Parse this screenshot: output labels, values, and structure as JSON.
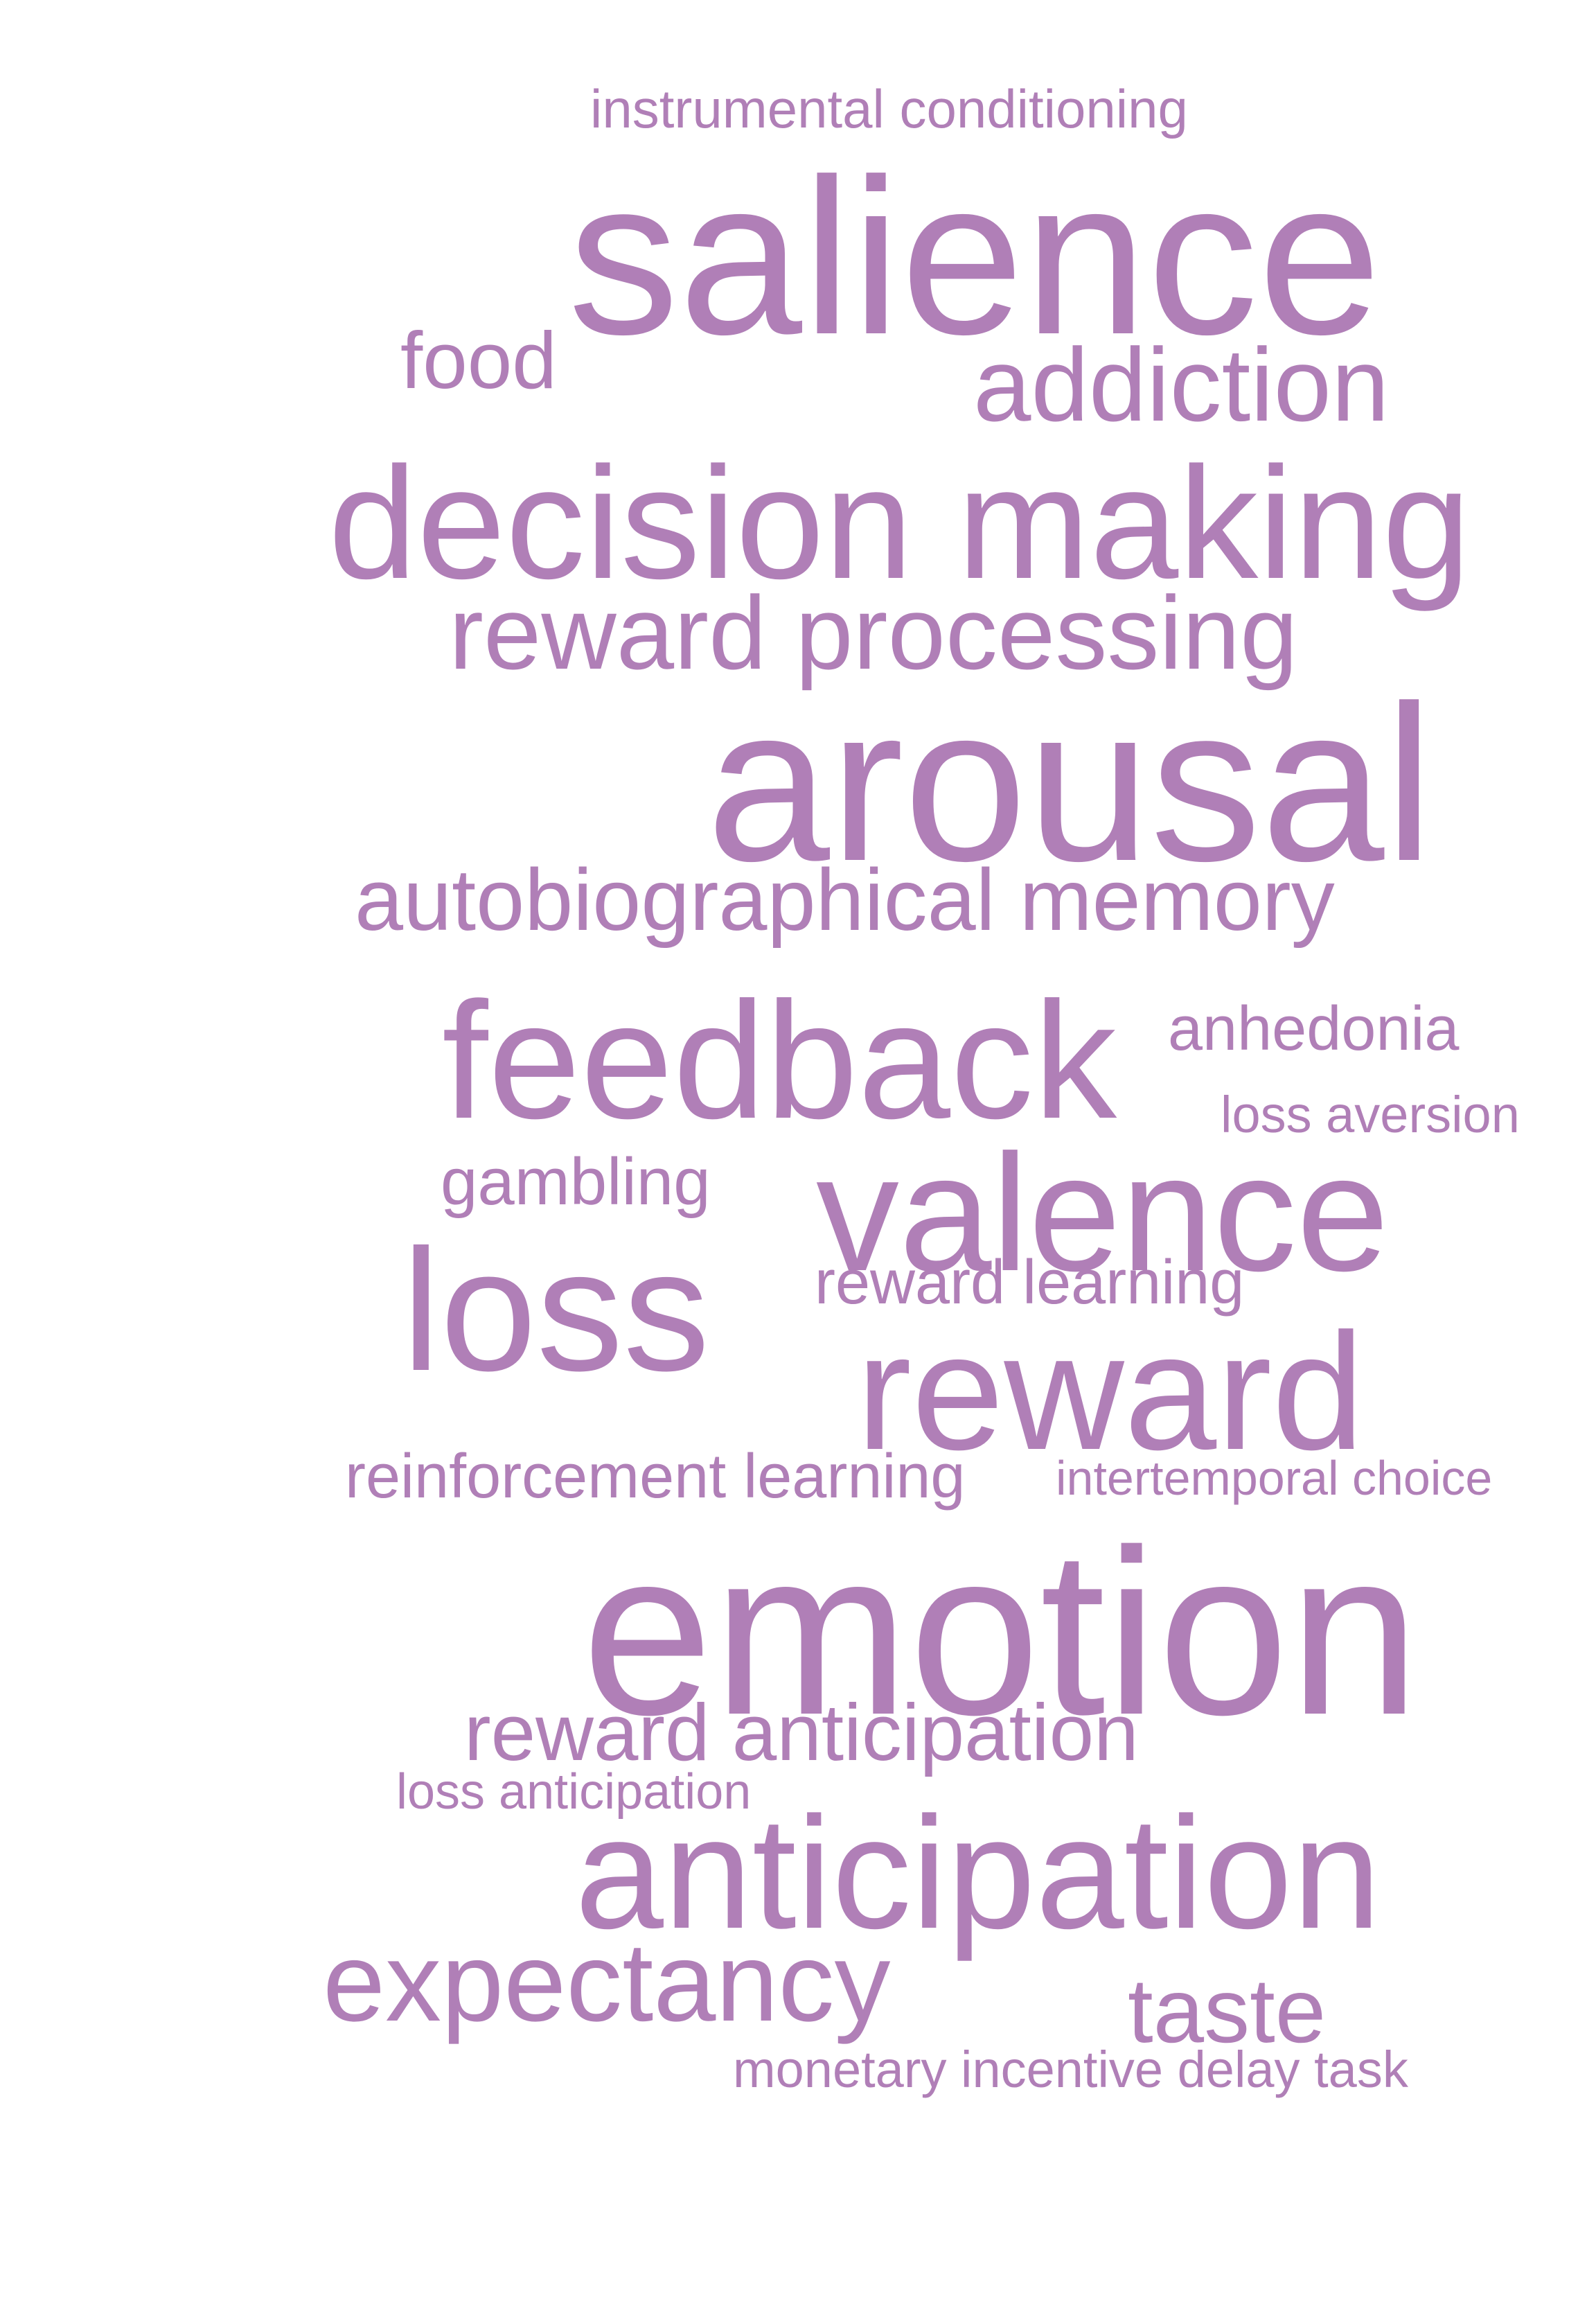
{
  "word_cloud": {
    "color": "#b07fb7",
    "background": "#ffffff",
    "words": [
      {
        "id": "instrumental-conditioning",
        "text": "instrumental conditioning"
      },
      {
        "id": "salience",
        "text": "salience"
      },
      {
        "id": "food",
        "text": "food"
      },
      {
        "id": "addiction",
        "text": "addiction"
      },
      {
        "id": "decision-making",
        "text": "decision making"
      },
      {
        "id": "reward-processing",
        "text": "reward processing"
      },
      {
        "id": "arousal",
        "text": "arousal"
      },
      {
        "id": "autobiographical-memory",
        "text": "autobiographical memory"
      },
      {
        "id": "feedback",
        "text": "feedback"
      },
      {
        "id": "anhedonia",
        "text": "anhedonia"
      },
      {
        "id": "loss-aversion",
        "text": "loss aversion"
      },
      {
        "id": "gambling",
        "text": "gambling"
      },
      {
        "id": "valence",
        "text": "valence"
      },
      {
        "id": "loss",
        "text": "loss"
      },
      {
        "id": "reward-learning",
        "text": "reward learning"
      },
      {
        "id": "reward",
        "text": "reward"
      },
      {
        "id": "reinforcement-learning",
        "text": "reinforcement learning"
      },
      {
        "id": "intertemporal-choice",
        "text": "intertemporal choice"
      },
      {
        "id": "emotion",
        "text": "emotion"
      },
      {
        "id": "reward-anticipation",
        "text": "reward anticipation"
      },
      {
        "id": "loss-anticipation",
        "text": "loss anticipation"
      },
      {
        "id": "anticipation",
        "text": "anticipation"
      },
      {
        "id": "expectancy",
        "text": "expectancy"
      },
      {
        "id": "taste",
        "text": "taste"
      },
      {
        "id": "monetary-incentive-delay-task",
        "text": "monetary incentive delay task"
      }
    ]
  }
}
